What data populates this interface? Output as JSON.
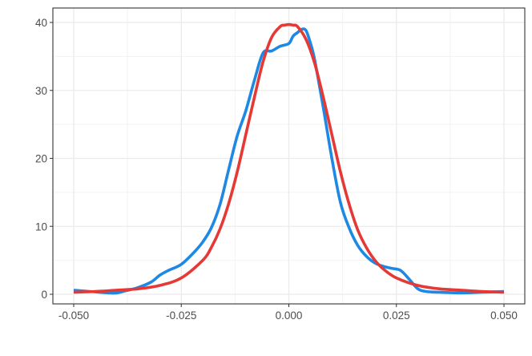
{
  "chart_data": {
    "type": "line",
    "title": "",
    "xlabel": "",
    "ylabel": "",
    "xlim": [
      -0.05,
      0.05
    ],
    "ylim": [
      0,
      40
    ],
    "x_ticks": [
      -0.05,
      -0.025,
      0.0,
      0.025,
      0.05
    ],
    "x_tick_labels": [
      "-0.050",
      "-0.025",
      "0.000",
      "0.025",
      "0.050"
    ],
    "y_ticks": [
      0,
      10,
      20,
      30,
      40
    ],
    "y_tick_labels": [
      "0",
      "10",
      "20",
      "30",
      "40"
    ],
    "grid": true,
    "legend": "none",
    "series": [
      {
        "color": "#1e88e5",
        "x": [
          -0.05,
          -0.046,
          -0.042,
          -0.04,
          -0.038,
          -0.035,
          -0.032,
          -0.03,
          -0.028,
          -0.025,
          -0.022,
          -0.02,
          -0.018,
          -0.016,
          -0.014,
          -0.012,
          -0.01,
          -0.008,
          -0.006,
          -0.004,
          -0.002,
          0.0,
          0.001,
          0.002,
          0.003,
          0.004,
          0.005,
          0.006,
          0.008,
          0.01,
          0.012,
          0.014,
          0.016,
          0.018,
          0.02,
          0.022,
          0.024,
          0.026,
          0.028,
          0.03,
          0.032,
          0.035,
          0.04,
          0.045,
          0.05
        ],
        "y": [
          0.6,
          0.4,
          0.2,
          0.2,
          0.5,
          1.0,
          1.8,
          2.8,
          3.5,
          4.4,
          6.2,
          7.7,
          9.8,
          13.2,
          18.3,
          23.3,
          27.0,
          31.5,
          35.5,
          35.8,
          36.5,
          36.9,
          38.0,
          38.5,
          39.0,
          38.8,
          37.0,
          34.5,
          27.5,
          20.0,
          13.5,
          9.8,
          7.2,
          5.6,
          4.6,
          4.1,
          3.8,
          3.5,
          2.2,
          0.8,
          0.4,
          0.3,
          0.2,
          0.3,
          0.4
        ]
      },
      {
        "color": "#e53935",
        "x": [
          -0.05,
          -0.045,
          -0.04,
          -0.035,
          -0.03,
          -0.025,
          -0.02,
          -0.018,
          -0.016,
          -0.014,
          -0.012,
          -0.01,
          -0.008,
          -0.006,
          -0.004,
          -0.002,
          -0.001,
          0.0,
          0.001,
          0.002,
          0.004,
          0.006,
          0.008,
          0.01,
          0.012,
          0.014,
          0.016,
          0.018,
          0.02,
          0.022,
          0.025,
          0.03,
          0.035,
          0.04,
          0.045,
          0.05
        ],
        "y": [
          0.3,
          0.4,
          0.6,
          0.8,
          1.3,
          2.4,
          5.0,
          6.9,
          9.6,
          13.3,
          18.0,
          23.5,
          29.0,
          34.2,
          37.8,
          39.4,
          39.6,
          39.7,
          39.6,
          39.4,
          37.5,
          34.0,
          29.0,
          23.5,
          18.0,
          13.3,
          9.5,
          6.9,
          5.0,
          3.7,
          2.4,
          1.3,
          0.8,
          0.6,
          0.4,
          0.3
        ]
      }
    ]
  }
}
